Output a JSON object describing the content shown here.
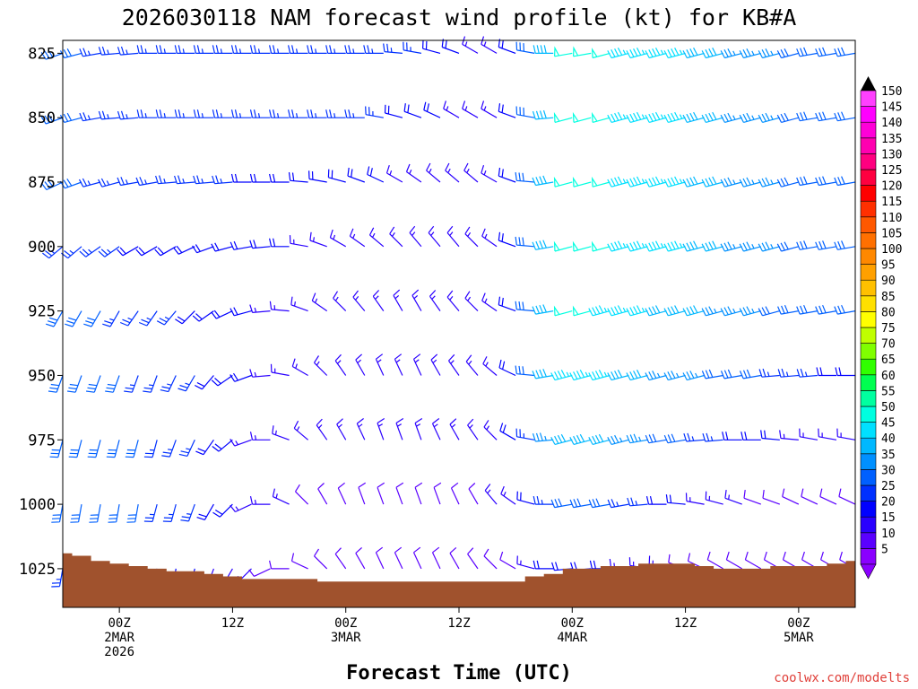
{
  "chart_data": {
    "type": "wind-barb time-height cross section",
    "title": "2026030118 NAM forecast wind profile (kt) for KB#A",
    "xlabel": "Forecast Time (UTC)",
    "ylabel": "",
    "y_axis": {
      "unit": "hPa",
      "range": [
        1040,
        820
      ],
      "ticks": [
        "825",
        "850",
        "875",
        "900",
        "925",
        "950",
        "975",
        "1000",
        "1025"
      ]
    },
    "x_axis": {
      "range_hours": [
        -6,
        78
      ],
      "ticks": [
        {
          "hour": 0,
          "lines": [
            "00Z",
            "2MAR",
            "2026"
          ]
        },
        {
          "hour": 12,
          "lines": [
            "12Z"
          ]
        },
        {
          "hour": 24,
          "lines": [
            "00Z",
            "3MAR"
          ]
        },
        {
          "hour": 36,
          "lines": [
            "12Z"
          ]
        },
        {
          "hour": 48,
          "lines": [
            "00Z",
            "4MAR"
          ]
        },
        {
          "hour": 60,
          "lines": [
            "12Z"
          ]
        },
        {
          "hour": 72,
          "lines": [
            "00Z",
            "5MAR"
          ]
        }
      ]
    },
    "surface_pressure": {
      "color": "#a0522d",
      "hours": [
        -6,
        -4,
        -2,
        0,
        2,
        4,
        6,
        8,
        10,
        12,
        14,
        16,
        18,
        20,
        22,
        24,
        26,
        28,
        30,
        32,
        34,
        36,
        38,
        40,
        42,
        44,
        46,
        48,
        50,
        52,
        54,
        56,
        58,
        60,
        62,
        64,
        66,
        68,
        70,
        72,
        74,
        76,
        78
      ],
      "values": [
        1019,
        1020,
        1022,
        1023,
        1024,
        1025,
        1026,
        1026,
        1027,
        1028,
        1029,
        1029,
        1029,
        1029,
        1030,
        1030,
        1030,
        1030,
        1030,
        1030,
        1030,
        1030,
        1030,
        1030,
        1030,
        1028,
        1027,
        1025,
        1025,
        1024,
        1024,
        1023,
        1023,
        1023,
        1024,
        1025,
        1025,
        1025,
        1024,
        1024,
        1024,
        1023,
        1022
      ]
    },
    "wind_barbs": {
      "units": "kt",
      "hours": [
        -6,
        -4,
        -2,
        0,
        2,
        4,
        6,
        8,
        10,
        12,
        14,
        16,
        18,
        20,
        22,
        24,
        26,
        28,
        30,
        32,
        34,
        36,
        38,
        40,
        42,
        44,
        46,
        48,
        50,
        52,
        54,
        56,
        58,
        60,
        62,
        64,
        66,
        68,
        70,
        72,
        74,
        76,
        78
      ],
      "levels": [
        825,
        850,
        875,
        900,
        925,
        950,
        975,
        1000,
        1025
      ],
      "direction_deg": [
        [
          250,
          255,
          260,
          265,
          265,
          270,
          270,
          270,
          270,
          270,
          270,
          270,
          270,
          270,
          270,
          270,
          270,
          270,
          275,
          280,
          285,
          290,
          300,
          300,
          290,
          280,
          270,
          260,
          260,
          255,
          255,
          255,
          255,
          255,
          255,
          255,
          255,
          255,
          255,
          255,
          260,
          260,
          260
        ],
        [
          250,
          255,
          260,
          265,
          265,
          270,
          270,
          270,
          270,
          270,
          270,
          270,
          270,
          270,
          270,
          270,
          270,
          280,
          285,
          290,
          295,
          300,
          300,
          300,
          290,
          280,
          265,
          255,
          255,
          255,
          255,
          255,
          255,
          255,
          255,
          255,
          255,
          255,
          255,
          255,
          260,
          260,
          260
        ],
        [
          245,
          250,
          255,
          255,
          260,
          260,
          265,
          265,
          265,
          265,
          270,
          270,
          270,
          275,
          280,
          285,
          290,
          295,
          300,
          305,
          310,
          310,
          310,
          300,
          290,
          275,
          260,
          255,
          255,
          255,
          255,
          255,
          255,
          255,
          255,
          255,
          255,
          255,
          255,
          255,
          260,
          260,
          260
        ],
        [
          230,
          230,
          235,
          235,
          240,
          240,
          240,
          245,
          250,
          255,
          260,
          265,
          270,
          280,
          290,
          300,
          305,
          310,
          315,
          320,
          320,
          320,
          315,
          305,
          290,
          275,
          260,
          255,
          255,
          255,
          255,
          255,
          255,
          255,
          255,
          255,
          255,
          255,
          255,
          255,
          260,
          260,
          260
        ],
        [
          210,
          210,
          210,
          210,
          215,
          215,
          220,
          225,
          235,
          245,
          255,
          265,
          275,
          290,
          305,
          315,
          320,
          325,
          330,
          330,
          325,
          320,
          315,
          305,
          290,
          275,
          260,
          255,
          255,
          255,
          255,
          255,
          255,
          255,
          255,
          255,
          255,
          255,
          255,
          260,
          260,
          260,
          260
        ],
        [
          200,
          200,
          200,
          200,
          200,
          200,
          205,
          210,
          220,
          235,
          250,
          265,
          280,
          300,
          315,
          325,
          330,
          335,
          335,
          335,
          330,
          325,
          320,
          310,
          295,
          275,
          260,
          255,
          255,
          255,
          255,
          255,
          255,
          255,
          255,
          260,
          260,
          260,
          265,
          265,
          265,
          270,
          270
        ],
        [
          195,
          195,
          195,
          195,
          195,
          195,
          200,
          205,
          215,
          230,
          250,
          270,
          290,
          310,
          325,
          330,
          335,
          340,
          340,
          340,
          335,
          330,
          325,
          315,
          300,
          280,
          265,
          255,
          255,
          255,
          255,
          260,
          260,
          260,
          265,
          265,
          270,
          270,
          275,
          275,
          280,
          280,
          280
        ],
        [
          190,
          190,
          190,
          190,
          190,
          195,
          195,
          200,
          210,
          225,
          245,
          270,
          295,
          315,
          330,
          335,
          340,
          340,
          340,
          340,
          340,
          335,
          330,
          320,
          305,
          285,
          270,
          260,
          260,
          260,
          260,
          265,
          270,
          275,
          280,
          285,
          290,
          290,
          290,
          295,
          295,
          295,
          295
        ],
        [
          190,
          190,
          190,
          190,
          190,
          190,
          190,
          195,
          200,
          210,
          225,
          245,
          270,
          295,
          315,
          325,
          330,
          335,
          335,
          335,
          335,
          330,
          325,
          315,
          300,
          285,
          270,
          265,
          265,
          270,
          275,
          280,
          285,
          290,
          295,
          300,
          300,
          300,
          300,
          300,
          300,
          300,
          300
        ]
      ],
      "speed_kt": [
        [
          30,
          30,
          25,
          25,
          25,
          25,
          25,
          25,
          25,
          25,
          25,
          25,
          25,
          25,
          25,
          25,
          25,
          25,
          25,
          25,
          20,
          20,
          15,
          15,
          20,
          30,
          40,
          50,
          50,
          50,
          45,
          45,
          45,
          45,
          40,
          40,
          35,
          35,
          35,
          30,
          30,
          30,
          30
        ],
        [
          30,
          30,
          25,
          25,
          25,
          25,
          25,
          25,
          25,
          25,
          25,
          25,
          25,
          25,
          25,
          25,
          25,
          25,
          20,
          20,
          20,
          15,
          15,
          15,
          20,
          30,
          40,
          50,
          50,
          50,
          45,
          45,
          45,
          45,
          40,
          40,
          35,
          35,
          35,
          30,
          30,
          30,
          30
        ],
        [
          30,
          30,
          25,
          25,
          25,
          25,
          25,
          25,
          25,
          25,
          20,
          20,
          20,
          20,
          20,
          20,
          20,
          20,
          15,
          15,
          15,
          15,
          15,
          15,
          20,
          30,
          40,
          50,
          50,
          50,
          45,
          45,
          45,
          45,
          40,
          40,
          35,
          35,
          35,
          30,
          30,
          30,
          30
        ],
        [
          25,
          25,
          25,
          25,
          20,
          20,
          20,
          20,
          20,
          20,
          20,
          20,
          20,
          15,
          15,
          15,
          15,
          15,
          15,
          15,
          15,
          15,
          15,
          15,
          20,
          30,
          40,
          50,
          50,
          50,
          45,
          45,
          45,
          45,
          40,
          40,
          35,
          35,
          35,
          30,
          30,
          30,
          30
        ],
        [
          30,
          30,
          30,
          25,
          25,
          25,
          25,
          20,
          20,
          20,
          20,
          15,
          15,
          15,
          15,
          15,
          15,
          15,
          15,
          15,
          15,
          15,
          15,
          15,
          20,
          30,
          40,
          50,
          50,
          45,
          45,
          45,
          40,
          40,
          40,
          35,
          35,
          35,
          30,
          30,
          30,
          30,
          30
        ],
        [
          30,
          30,
          30,
          30,
          25,
          25,
          25,
          25,
          20,
          20,
          20,
          15,
          15,
          15,
          15,
          15,
          15,
          15,
          15,
          15,
          15,
          15,
          15,
          15,
          20,
          30,
          40,
          45,
          45,
          45,
          40,
          40,
          35,
          35,
          35,
          30,
          30,
          30,
          25,
          25,
          25,
          20,
          20
        ],
        [
          30,
          30,
          30,
          30,
          30,
          25,
          25,
          25,
          20,
          20,
          15,
          15,
          15,
          15,
          15,
          15,
          15,
          15,
          15,
          15,
          15,
          15,
          15,
          15,
          20,
          25,
          35,
          40,
          40,
          40,
          35,
          35,
          30,
          30,
          25,
          25,
          20,
          20,
          20,
          15,
          15,
          15,
          15
        ],
        [
          30,
          30,
          30,
          30,
          30,
          25,
          25,
          25,
          20,
          20,
          15,
          15,
          15,
          10,
          10,
          10,
          10,
          10,
          10,
          10,
          10,
          10,
          10,
          15,
          15,
          20,
          25,
          30,
          30,
          30,
          25,
          25,
          20,
          20,
          15,
          15,
          15,
          10,
          10,
          10,
          10,
          10,
          10
        ],
        [
          25,
          25,
          25,
          25,
          25,
          20,
          20,
          20,
          15,
          15,
          15,
          10,
          10,
          10,
          10,
          10,
          10,
          10,
          10,
          10,
          10,
          10,
          10,
          10,
          10,
          15,
          20,
          20,
          20,
          20,
          15,
          15,
          15,
          10,
          10,
          10,
          10,
          10,
          10,
          10,
          10,
          10,
          10
        ]
      ]
    },
    "colorbar": {
      "levels": [
        "5",
        "10",
        "15",
        "20",
        "25",
        "30",
        "35",
        "40",
        "45",
        "50",
        "55",
        "60",
        "65",
        "70",
        "75",
        "80",
        "85",
        "90",
        "95",
        "100",
        "105",
        "110",
        "115",
        "120",
        "125",
        "130",
        "135",
        "140",
        "145",
        "150"
      ],
      "colors": [
        "#8a00ff",
        "#5a00ff",
        "#2a00ff",
        "#0000ff",
        "#0030ff",
        "#0060ff",
        "#0090ff",
        "#00b8ff",
        "#00e0ff",
        "#00ffe0",
        "#00ffa0",
        "#00ff50",
        "#30ff00",
        "#80ff00",
        "#c0ff00",
        "#ffff00",
        "#ffe000",
        "#ffc000",
        "#ffa000",
        "#ff8800",
        "#ff7000",
        "#ff5800",
        "#ff3000",
        "#ff0000",
        "#ff0040",
        "#ff0080",
        "#ff00b0",
        "#ff00d8",
        "#ff00ff",
        "#ff40ff"
      ]
    },
    "credit": "coolwx.com/modelts"
  }
}
